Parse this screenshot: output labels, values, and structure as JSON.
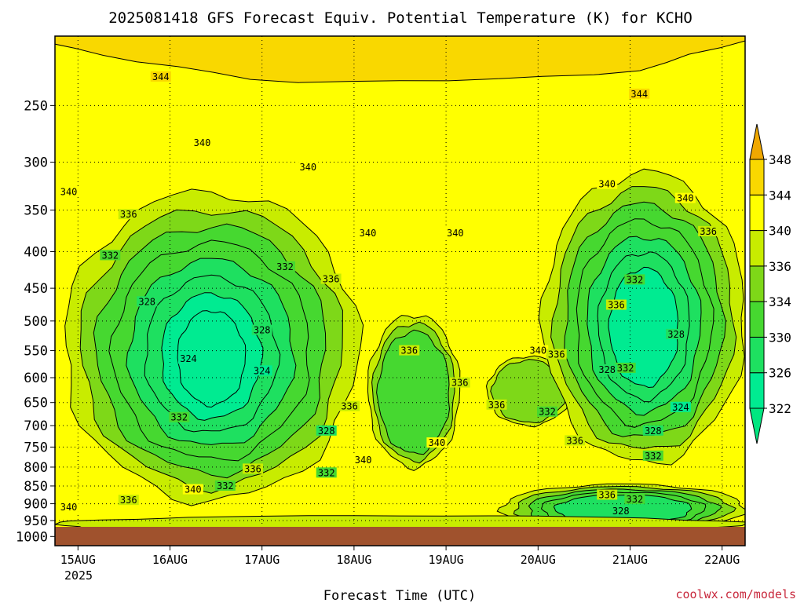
{
  "chart_data": {
    "type": "heatmap",
    "title": "2025081418 GFS Forecast Equiv. Potential Temperature (K) for KCHO",
    "xlabel": "Forecast Time (UTC)",
    "ylabel": "",
    "x_ticks": [
      "15AUG",
      "16AUG",
      "17AUG",
      "18AUG",
      "19AUG",
      "20AUG",
      "21AUG",
      "22AUG"
    ],
    "x_tick_sublabel": "2025",
    "x_range_days": [
      -0.25,
      7.25
    ],
    "y_scale": "log-pressure",
    "y_range_hPa": [
      1030,
      200
    ],
    "y_ticks": [
      250,
      300,
      350,
      400,
      450,
      500,
      550,
      600,
      650,
      700,
      750,
      800,
      850,
      900,
      950,
      1000
    ],
    "grid": true,
    "colorbar": {
      "placement": "right",
      "levels": [
        322,
        326,
        330,
        334,
        336,
        340,
        344,
        348
      ],
      "bands": [
        {
          "lo": 318,
          "hi": 322,
          "color": "#00e680"
        },
        {
          "lo": 322,
          "hi": 326,
          "color": "#00eb91"
        },
        {
          "lo": 326,
          "hi": 330,
          "color": "#1ee060"
        },
        {
          "lo": 330,
          "hi": 334,
          "color": "#46d830"
        },
        {
          "lo": 334,
          "hi": 336,
          "color": "#7ed818"
        },
        {
          "lo": 336,
          "hi": 340,
          "color": "#c8ec00"
        },
        {
          "lo": 340,
          "hi": 344,
          "color": "#ffff00"
        },
        {
          "lo": 344,
          "hi": 348,
          "color": "#f9d800"
        },
        {
          "lo": 348,
          "hi": 352,
          "color": "#f0a800"
        }
      ]
    },
    "contour_labels": [
      {
        "value": 344,
        "day": 0.9,
        "p": 228
      },
      {
        "value": 344,
        "day": 6.1,
        "p": 241
      },
      {
        "value": 340,
        "day": 1.35,
        "p": 282
      },
      {
        "value": 340,
        "day": 2.5,
        "p": 305
      },
      {
        "value": 340,
        "day": -0.1,
        "p": 330
      },
      {
        "value": 340,
        "day": 3.15,
        "p": 377
      },
      {
        "value": 340,
        "day": 4.1,
        "p": 377
      },
      {
        "value": 340,
        "day": 5.75,
        "p": 322
      },
      {
        "value": 340,
        "day": 6.6,
        "p": 337
      },
      {
        "value": 340,
        "day": 5.0,
        "p": 550
      },
      {
        "value": 340,
        "day": 3.9,
        "p": 740
      },
      {
        "value": 340,
        "day": 3.1,
        "p": 782
      },
      {
        "value": 340,
        "day": 1.25,
        "p": 860
      },
      {
        "value": 340,
        "day": -0.1,
        "p": 910
      },
      {
        "value": 336,
        "day": 0.55,
        "p": 355
      },
      {
        "value": 336,
        "day": 2.75,
        "p": 437
      },
      {
        "value": 336,
        "day": 3.6,
        "p": 550
      },
      {
        "value": 336,
        "day": 4.15,
        "p": 610
      },
      {
        "value": 336,
        "day": 4.55,
        "p": 655
      },
      {
        "value": 336,
        "day": 5.2,
        "p": 557
      },
      {
        "value": 336,
        "day": 5.85,
        "p": 475
      },
      {
        "value": 336,
        "day": 6.85,
        "p": 375
      },
      {
        "value": 336,
        "day": 2.95,
        "p": 658
      },
      {
        "value": 336,
        "day": 1.9,
        "p": 805
      },
      {
        "value": 336,
        "day": 0.55,
        "p": 890
      },
      {
        "value": 336,
        "day": 5.4,
        "p": 735
      },
      {
        "value": 336,
        "day": 5.75,
        "p": 875
      },
      {
        "value": 332,
        "day": 0.35,
        "p": 405
      },
      {
        "value": 332,
        "day": 2.25,
        "p": 420
      },
      {
        "value": 332,
        "day": 6.05,
        "p": 438
      },
      {
        "value": 332,
        "day": 1.1,
        "p": 682
      },
      {
        "value": 332,
        "day": 1.6,
        "p": 850
      },
      {
        "value": 332,
        "day": 2.7,
        "p": 815
      },
      {
        "value": 332,
        "day": 5.1,
        "p": 670
      },
      {
        "value": 332,
        "day": 5.95,
        "p": 582
      },
      {
        "value": 332,
        "day": 6.25,
        "p": 772
      },
      {
        "value": 332,
        "day": 6.05,
        "p": 887
      },
      {
        "value": 328,
        "day": 0.75,
        "p": 470
      },
      {
        "value": 328,
        "day": 2.0,
        "p": 515
      },
      {
        "value": 328,
        "day": 6.5,
        "p": 522
      },
      {
        "value": 328,
        "day": 5.75,
        "p": 585
      },
      {
        "value": 328,
        "day": 2.7,
        "p": 712
      },
      {
        "value": 328,
        "day": 6.25,
        "p": 712
      },
      {
        "value": 328,
        "day": 5.9,
        "p": 922
      },
      {
        "value": 324,
        "day": 1.2,
        "p": 565
      },
      {
        "value": 324,
        "day": 2.0,
        "p": 587
      },
      {
        "value": 324,
        "day": 6.55,
        "p": 660
      }
    ]
  },
  "credit": "coolwx.com/models"
}
